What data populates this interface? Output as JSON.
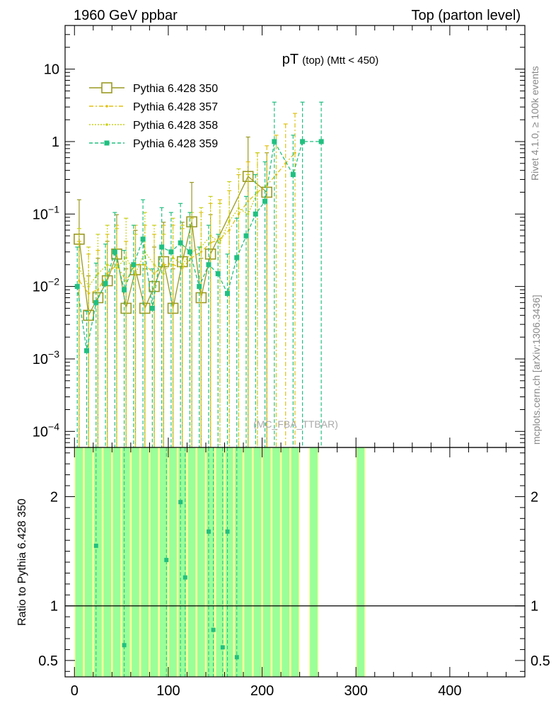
{
  "header": {
    "left": "1960 GeV ppbar",
    "right": "Top (parton level)"
  },
  "side_texts": {
    "rivet": "Rivet 4.1.0, ≥ 100k events",
    "mcplots": "mcplots.cern.ch [arXiv:1306.3436]"
  },
  "chart_data": [
    {
      "type": "line",
      "panel": "main",
      "title": "pT",
      "title_sub": "(top) (Mtt < 450)",
      "yscale": "log",
      "xlim": [
        -10,
        480
      ],
      "ylim": [
        6e-05,
        40
      ],
      "y_ticks": [
        {
          "value": 0.0001,
          "label": "10",
          "exp": "−4"
        },
        {
          "value": 0.001,
          "label": "10",
          "exp": "−3"
        },
        {
          "value": 0.01,
          "label": "10",
          "exp": "−2"
        },
        {
          "value": 0.1,
          "label": "10",
          "exp": "−1"
        },
        {
          "value": 1,
          "label": "1",
          "exp": ""
        },
        {
          "value": 10,
          "label": "10",
          "exp": ""
        }
      ],
      "watermark": "(MC_FBA_TTBAR)",
      "legend_position": "top-left",
      "series": [
        {
          "name": "Pythia 6.428 350",
          "color": "#9a9a22",
          "dash": "",
          "marker": "open-square",
          "x": [
            5,
            15,
            25,
            35,
            45,
            55,
            65,
            75,
            85,
            95,
            105,
            115,
            125,
            135,
            145,
            185,
            205
          ],
          "y": [
            0.045,
            0.004,
            0.007,
            0.012,
            0.028,
            0.005,
            0.017,
            0.005,
            0.01,
            0.022,
            0.005,
            0.022,
            0.078,
            0.007,
            0.028,
            0.33,
            0.2
          ]
        },
        {
          "name": "Pythia 6.428 357",
          "color": "#e0c010",
          "dash": "6,3,2,3",
          "marker": "small-dot",
          "x": [
            5,
            15,
            25,
            35,
            45,
            55,
            65,
            75,
            85,
            95,
            105,
            115,
            125,
            135,
            145,
            155,
            165,
            175,
            185,
            195,
            205,
            215,
            225,
            235
          ],
          "y": [
            0.012,
            0.008,
            0.009,
            0.015,
            0.02,
            0.012,
            0.02,
            0.02,
            0.015,
            0.02,
            0.02,
            0.018,
            0.025,
            0.03,
            0.04,
            0.045,
            0.06,
            0.1,
            0.15,
            0.2,
            0.25,
            0.35,
            0.5,
            0.7
          ]
        },
        {
          "name": "Pythia 6.428 358",
          "color": "#c8d018",
          "dash": "2,2",
          "marker": "small-dot",
          "x": [
            5,
            15,
            25,
            35,
            45,
            55,
            65,
            75,
            85,
            95,
            105,
            115,
            125,
            135,
            145,
            155,
            165,
            175,
            185,
            195
          ],
          "y": [
            0.018,
            0.01,
            0.015,
            0.02,
            0.018,
            0.025,
            0.015,
            0.03,
            0.02,
            0.015,
            0.025,
            0.02,
            0.03,
            0.035,
            0.05,
            0.04,
            0.08,
            0.12,
            0.1,
            0.2
          ]
        },
        {
          "name": "Pythia 6.428 359",
          "color": "#20c080",
          "dash": "5,3",
          "marker": "filled-square",
          "x": [
            3,
            13,
            23,
            33,
            43,
            53,
            63,
            73,
            83,
            93,
            103,
            113,
            123,
            133,
            143,
            153,
            163,
            173,
            183,
            193,
            203,
            213,
            233,
            243,
            263
          ],
          "y": [
            0.01,
            0.0013,
            0.006,
            0.011,
            0.03,
            0.009,
            0.02,
            0.045,
            0.005,
            0.035,
            0.03,
            0.04,
            0.03,
            0.01,
            0.02,
            0.015,
            0.008,
            0.025,
            0.05,
            0.1,
            0.15,
            1.0,
            0.35,
            1.0,
            1.0
          ]
        }
      ]
    },
    {
      "type": "line",
      "panel": "ratio",
      "ylabel": "Ratio to Pythia 6.428 350",
      "xlim": [
        -10,
        480
      ],
      "ylim": [
        0.35,
        2.45
      ],
      "x_ticks": [
        0,
        100,
        200,
        300,
        400
      ],
      "y_ticks": [
        {
          "value": 0.5,
          "label": "0.5"
        },
        {
          "value": 1,
          "label": "1"
        },
        {
          "value": 2,
          "label": "2"
        }
      ],
      "reference": 1,
      "bands": [
        {
          "name": "syst",
          "color": "#ffff99",
          "x": [
            0,
            10,
            20,
            30,
            40,
            50,
            60,
            70,
            80,
            90,
            100,
            110,
            120,
            130,
            140,
            150,
            160,
            170,
            180,
            190,
            200,
            210,
            220,
            230,
            250,
            300
          ],
          "width": 10
        },
        {
          "name": "stat",
          "color": "#99ff99",
          "x": [
            0,
            10,
            20,
            30,
            40,
            50,
            60,
            70,
            80,
            90,
            100,
            110,
            120,
            130,
            140,
            150,
            160,
            170,
            180,
            190,
            200,
            210,
            220,
            230,
            250,
            300
          ],
          "width": 8
        }
      ],
      "series": [
        {
          "name": "Pythia 6.428 359",
          "color": "#20c080",
          "x": [
            23,
            53,
            98,
            113,
            118,
            143,
            148,
            158,
            163,
            173
          ],
          "y": [
            1.55,
            0.64,
            1.42,
            1.95,
            1.26,
            1.68,
            0.78,
            0.62,
            1.68,
            0.53
          ]
        }
      ]
    }
  ]
}
